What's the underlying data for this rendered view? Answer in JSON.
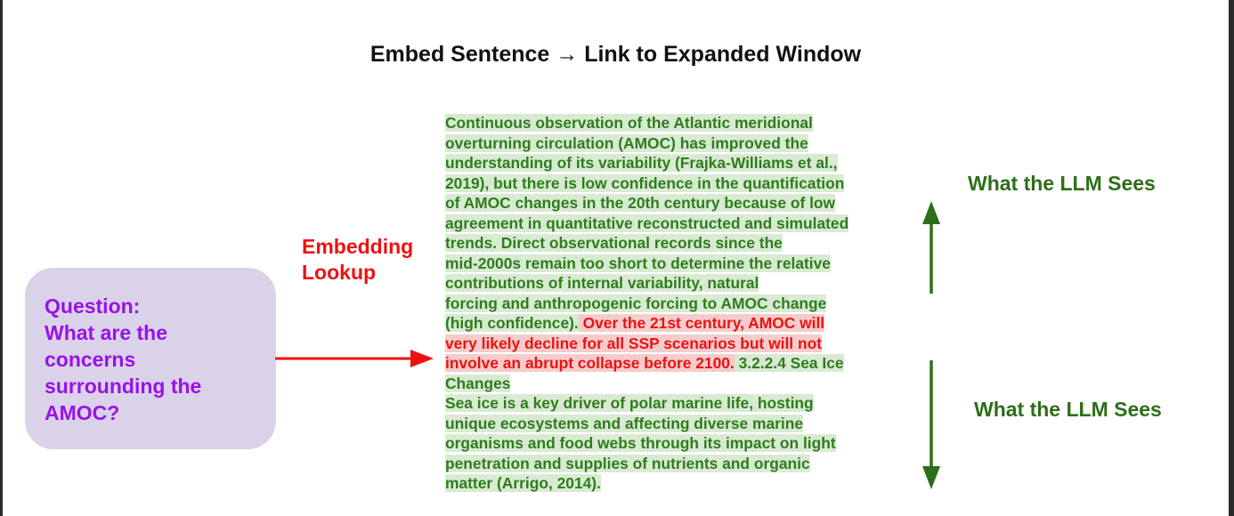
{
  "title": "Embed Sentence → Link to Expanded Window",
  "question": "Question: What are the concerns surrounding the AMOC?",
  "embedding_lookup_label": "Embedding Lookup",
  "passage_lines": [
    [
      {
        "t": "Continuous observation of the Atlantic meridional",
        "h": "green"
      }
    ],
    [
      {
        "t": "overturning circulation (AMOC) has improved the",
        "h": "green"
      }
    ],
    [
      {
        "t": "understanding of its variability (Frajka-Williams et  al.,",
        "h": "green"
      }
    ],
    [
      {
        "t": "2019), but there is low confidence in the quantification",
        "h": "green"
      }
    ],
    [
      {
        "t": "of AMOC changes in the 20th century because of low",
        "h": "green"
      }
    ],
    [
      {
        "t": "agreement in quantitative reconstructed and simulated",
        "h": "green"
      }
    ],
    [
      {
        "t": "trends. Direct observational records since the",
        "h": "green"
      }
    ],
    [
      {
        "t": "mid-2000s remain too short to determine the relative",
        "h": "green"
      }
    ],
    [
      {
        "t": "contributions of internal variability, natural",
        "h": "green"
      }
    ],
    [
      {
        "t": "forcing and anthropogenic forcing to AMOC change",
        "h": "green"
      }
    ],
    [
      {
        "t": "(high confidence).",
        "h": "green"
      },
      {
        "t": " Over the 21st century, AMOC will",
        "h": "red"
      }
    ],
    [
      {
        "t": "very likely decline for all SSP scenarios but will not",
        "h": "red"
      }
    ],
    [
      {
        "t": "involve an abrupt collapse before 2100.",
        "h": "red"
      },
      {
        "t": " 3.2.2.4 Sea Ice",
        "h": "green"
      }
    ],
    [
      {
        "t": "Changes",
        "h": "green"
      }
    ],
    [
      {
        "t": "Sea ice is a key driver of polar marine life, hosting",
        "h": "green"
      }
    ],
    [
      {
        "t": "unique ecosystems and affecting diverse marine",
        "h": "green"
      }
    ],
    [
      {
        "t": "organisms and food webs through its impact on light",
        "h": "green"
      }
    ],
    [
      {
        "t": "penetration and supplies of nutrients and organic",
        "h": "green"
      }
    ],
    [
      {
        "t": "matter (Arrigo, 2014).",
        "h": "green"
      }
    ]
  ],
  "sees_label_top": "What the LLM Sees",
  "sees_label_bottom": "What the LLM Sees",
  "colors": {
    "question_fill": "#d9d2e9",
    "question_text": "#9b10e8",
    "lookup_red": "#ee1111",
    "context_green": "#2e7d1d",
    "highlight_green": "#d9ead3",
    "highlight_red": "#f4cccc"
  }
}
